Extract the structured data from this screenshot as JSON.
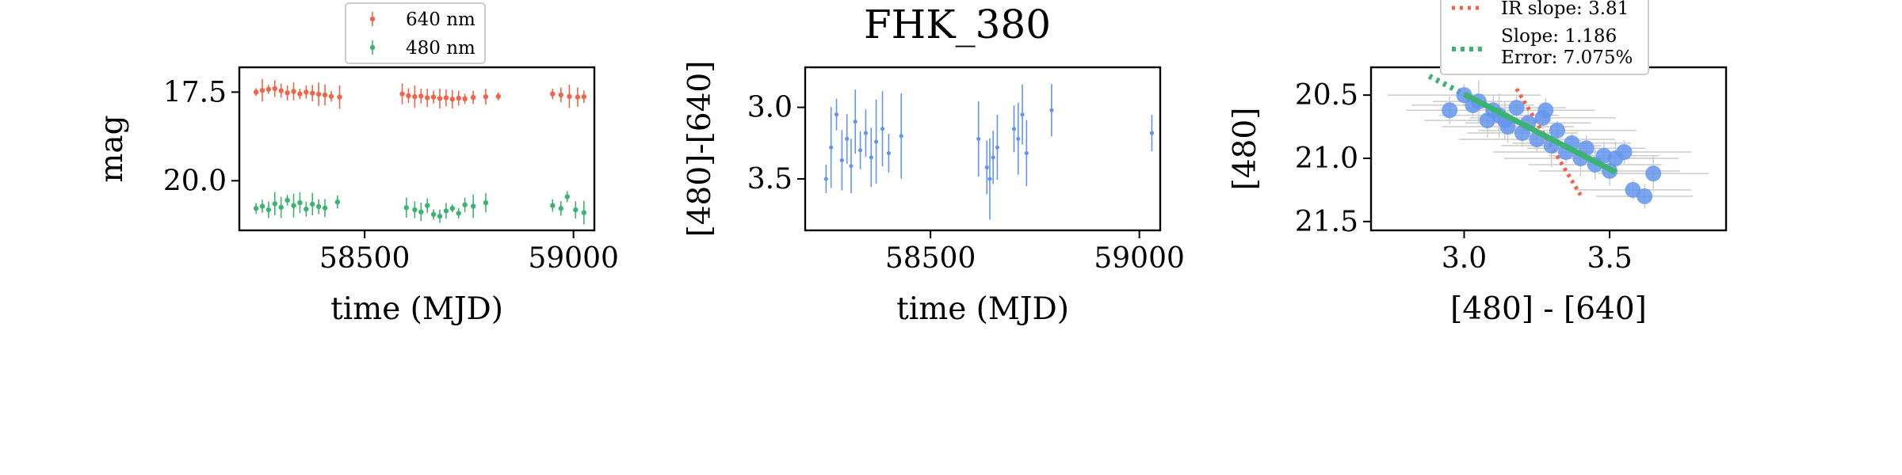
{
  "title": "FHK_380",
  "colors": {
    "red": "#f2644a",
    "green": "#3cb371",
    "blue": "#6495ed",
    "error_grey": "#cccccc"
  },
  "chart_data": [
    {
      "type": "scatter",
      "xlabel": "time (MJD)",
      "ylabel": "mag",
      "xlim": [
        58200,
        59050
      ],
      "ylim": [
        21.4,
        16.8
      ],
      "y_inverted": true,
      "xticks": [
        58500,
        59000
      ],
      "yticks": [
        17.5,
        20.0
      ],
      "legend_position": "top-center",
      "legend": [
        "640 nm",
        "480 nm"
      ],
      "series": [
        {
          "name": "640 nm",
          "color": "#f2644a",
          "x": [
            58240,
            58255,
            58270,
            58285,
            58300,
            58315,
            58330,
            58345,
            58360,
            58375,
            58390,
            58405,
            58420,
            58440,
            58590,
            58605,
            58620,
            58635,
            58650,
            58665,
            58680,
            58695,
            58710,
            58725,
            58740,
            58760,
            58790,
            58820,
            58950,
            58970,
            58990,
            59010,
            59025
          ],
          "y": [
            17.5,
            17.45,
            17.42,
            17.4,
            17.46,
            17.52,
            17.48,
            17.55,
            17.5,
            17.53,
            17.56,
            17.58,
            17.62,
            17.64,
            17.55,
            17.6,
            17.63,
            17.61,
            17.66,
            17.64,
            17.68,
            17.66,
            17.7,
            17.67,
            17.69,
            17.65,
            17.63,
            17.62,
            17.55,
            17.58,
            17.62,
            17.64,
            17.63
          ]
        },
        {
          "name": "480 nm",
          "color": "#3cb371",
          "x": [
            58240,
            58255,
            58270,
            58285,
            58300,
            58315,
            58330,
            58345,
            58360,
            58375,
            58390,
            58405,
            58435,
            58600,
            58620,
            58635,
            58650,
            58665,
            58680,
            58695,
            58710,
            58725,
            58740,
            58760,
            58790,
            58950,
            58970,
            58985,
            59005,
            59025
          ],
          "y": [
            20.78,
            20.72,
            20.82,
            20.65,
            20.75,
            20.55,
            20.7,
            20.62,
            20.8,
            20.66,
            20.73,
            20.77,
            20.6,
            20.76,
            20.82,
            20.88,
            20.7,
            20.95,
            21.0,
            20.85,
            20.78,
            20.92,
            20.68,
            20.72,
            20.62,
            20.7,
            20.78,
            20.45,
            20.82,
            20.9
          ]
        }
      ]
    },
    {
      "type": "scatter",
      "xlabel": "time (MJD)",
      "ylabel": "[480]-[640]",
      "xlim": [
        58200,
        59050
      ],
      "ylim": [
        3.86,
        2.72
      ],
      "y_inverted": true,
      "xticks": [
        58500,
        59000
      ],
      "yticks": [
        3.0,
        3.5
      ],
      "series": [
        {
          "color": "#6495ed",
          "x": [
            58250,
            58262,
            58275,
            58288,
            58300,
            58310,
            58320,
            58332,
            58345,
            58358,
            58370,
            58385,
            58400,
            58430,
            58615,
            58635,
            58642,
            58650,
            58660,
            58700,
            58710,
            58720,
            58730,
            58790,
            59030
          ],
          "y": [
            3.5,
            3.28,
            3.05,
            3.37,
            3.22,
            3.41,
            3.1,
            3.3,
            3.18,
            3.35,
            3.24,
            3.15,
            3.32,
            3.2,
            3.22,
            3.42,
            3.5,
            3.35,
            3.28,
            3.15,
            3.22,
            3.05,
            3.32,
            3.02,
            3.18
          ]
        }
      ]
    },
    {
      "type": "scatter",
      "xlabel": "[480] - [640]",
      "ylabel": "[480]",
      "xlim": [
        2.68,
        3.9
      ],
      "ylim": [
        21.57,
        20.28
      ],
      "y_inverted": true,
      "xticks": [
        3.0,
        3.5
      ],
      "yticks": [
        20.5,
        21.0,
        21.5
      ],
      "legend": [
        "IR slope: 3.81",
        "Slope: 1.186\nError: 7.075%"
      ],
      "fit_lines": [
        {
          "name": "IR slope: 3.81",
          "color": "#f2644a",
          "x": [
            3.18,
            3.4
          ],
          "y": [
            20.45,
            21.29
          ]
        },
        {
          "name": "Slope: 1.186",
          "color": "#3cb371",
          "x": [
            2.88,
            3.52
          ],
          "y": [
            20.35,
            21.11
          ]
        }
      ],
      "series": [
        {
          "color": "#6495ed",
          "x": [
            2.95,
            3.0,
            3.05,
            3.08,
            3.1,
            3.12,
            3.15,
            3.18,
            3.2,
            3.22,
            3.25,
            3.27,
            3.3,
            3.32,
            3.35,
            3.37,
            3.4,
            3.42,
            3.45,
            3.48,
            3.5,
            3.52,
            3.55,
            3.58,
            3.62,
            3.65,
            3.03,
            3.14,
            3.28
          ],
          "y": [
            20.62,
            20.5,
            20.55,
            20.7,
            20.62,
            20.66,
            20.75,
            20.6,
            20.8,
            20.72,
            20.85,
            20.68,
            20.9,
            20.78,
            20.95,
            20.88,
            21.0,
            20.92,
            21.05,
            20.98,
            21.1,
            21.0,
            20.95,
            21.25,
            21.3,
            21.12,
            20.58,
            20.7,
            20.62
          ]
        }
      ]
    }
  ]
}
